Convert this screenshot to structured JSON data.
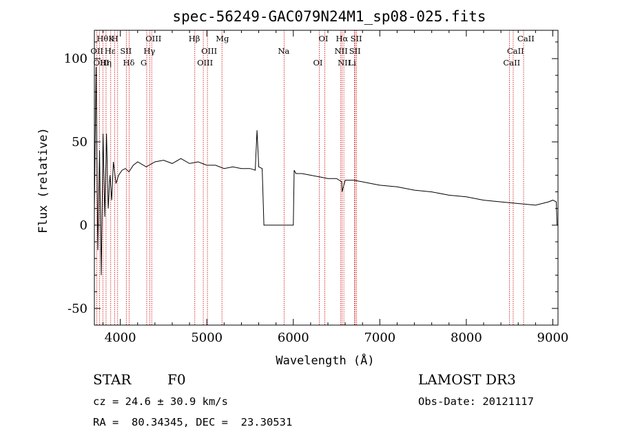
{
  "chart_data": {
    "type": "line",
    "title": "spec-56249-GAC079N24M1_sp08-025.fits",
    "xlabel": "Wavelength (Å)",
    "ylabel": "Flux (relative)",
    "xlim": [
      3700,
      9060
    ],
    "ylim": [
      -60,
      117
    ],
    "xticks": [
      4000,
      5000,
      6000,
      7000,
      8000,
      9000
    ],
    "yticks": [
      -50,
      0,
      50,
      100
    ],
    "series": [
      {
        "name": "flux",
        "x": [
          3700,
          3720,
          3740,
          3760,
          3780,
          3800,
          3820,
          3840,
          3860,
          3880,
          3900,
          3920,
          3950,
          3980,
          4020,
          4060,
          4100,
          4150,
          4200,
          4300,
          4400,
          4500,
          4600,
          4700,
          4800,
          4900,
          5000,
          5100,
          5200,
          5300,
          5400,
          5500,
          5560,
          5580,
          5600,
          5640,
          5660,
          5700,
          5800,
          5900,
          6000,
          6010,
          6030,
          6100,
          6200,
          6300,
          6400,
          6500,
          6560,
          6563,
          6600,
          6700,
          6800,
          6900,
          7000,
          7200,
          7400,
          7600,
          7800,
          8000,
          8200,
          8400,
          8600,
          8800,
          8950,
          9000,
          9040,
          9050
        ],
        "y": [
          8,
          95,
          -15,
          45,
          -30,
          55,
          5,
          55,
          10,
          30,
          15,
          38,
          25,
          30,
          33,
          34,
          32,
          36,
          38,
          35,
          38,
          39,
          37,
          40,
          37,
          38,
          36,
          36,
          34,
          35,
          34,
          34,
          33,
          57,
          35,
          34,
          0,
          0,
          0,
          0,
          0,
          33,
          31,
          31,
          30,
          29,
          28,
          28,
          26,
          20,
          27,
          27,
          26,
          25,
          24,
          23,
          21,
          20,
          18,
          17,
          15,
          14,
          13,
          12,
          14,
          15,
          14,
          0
        ]
      }
    ],
    "spectral_lines": [
      {
        "label": "Hθ",
        "wave": 3798
      },
      {
        "label": "OII",
        "wave": 3727
      },
      {
        "label": "OIII",
        "wave": 3760
      },
      {
        "label": "K",
        "wave": 3934
      },
      {
        "label": "Hε",
        "wave": 3889
      },
      {
        "label": "Hη",
        "wave": 3835
      },
      {
        "label": "H",
        "wave": 3969
      },
      {
        "label": "SII",
        "wave": 4069
      },
      {
        "label": "Hδ",
        "wave": 4102
      },
      {
        "label": "OIII",
        "wave": 4363
      },
      {
        "label": "Hγ",
        "wave": 4340
      },
      {
        "label": "G",
        "wave": 4305
      },
      {
        "label": "Hβ",
        "wave": 4861
      },
      {
        "label": "OIII",
        "wave": 5007
      },
      {
        "label": "OIII",
        "wave": 4959
      },
      {
        "label": "Mg",
        "wave": 5175
      },
      {
        "label": "Na",
        "wave": 5893
      },
      {
        "label": "OI",
        "wave": 6300
      },
      {
        "label": "OI",
        "wave": 6364
      },
      {
        "label": "NII",
        "wave": 6548
      },
      {
        "label": "NII",
        "wave": 6584
      },
      {
        "label": "Hα",
        "wave": 6563
      },
      {
        "label": "SII",
        "wave": 6716
      },
      {
        "label": "Li",
        "wave": 6707
      },
      {
        "label": "SII",
        "wave": 6731
      },
      {
        "label": "CaII",
        "wave": 8542
      },
      {
        "label": "CaII",
        "wave": 8498
      },
      {
        "label": "CaII",
        "wave": 8662
      }
    ]
  },
  "info": {
    "class_label": "STAR",
    "subclass": "F0",
    "survey": "LAMOST DR3",
    "cz_line": "cz = 24.6 ± 30.9 km/s",
    "obs_date_line": "Obs-Date: 20121117",
    "radec_line": "RA =  80.34345, DEC =  23.30531"
  },
  "colors": {
    "line": "#000000",
    "marker_lines": "#cc0000",
    "background": "#ffffff"
  }
}
